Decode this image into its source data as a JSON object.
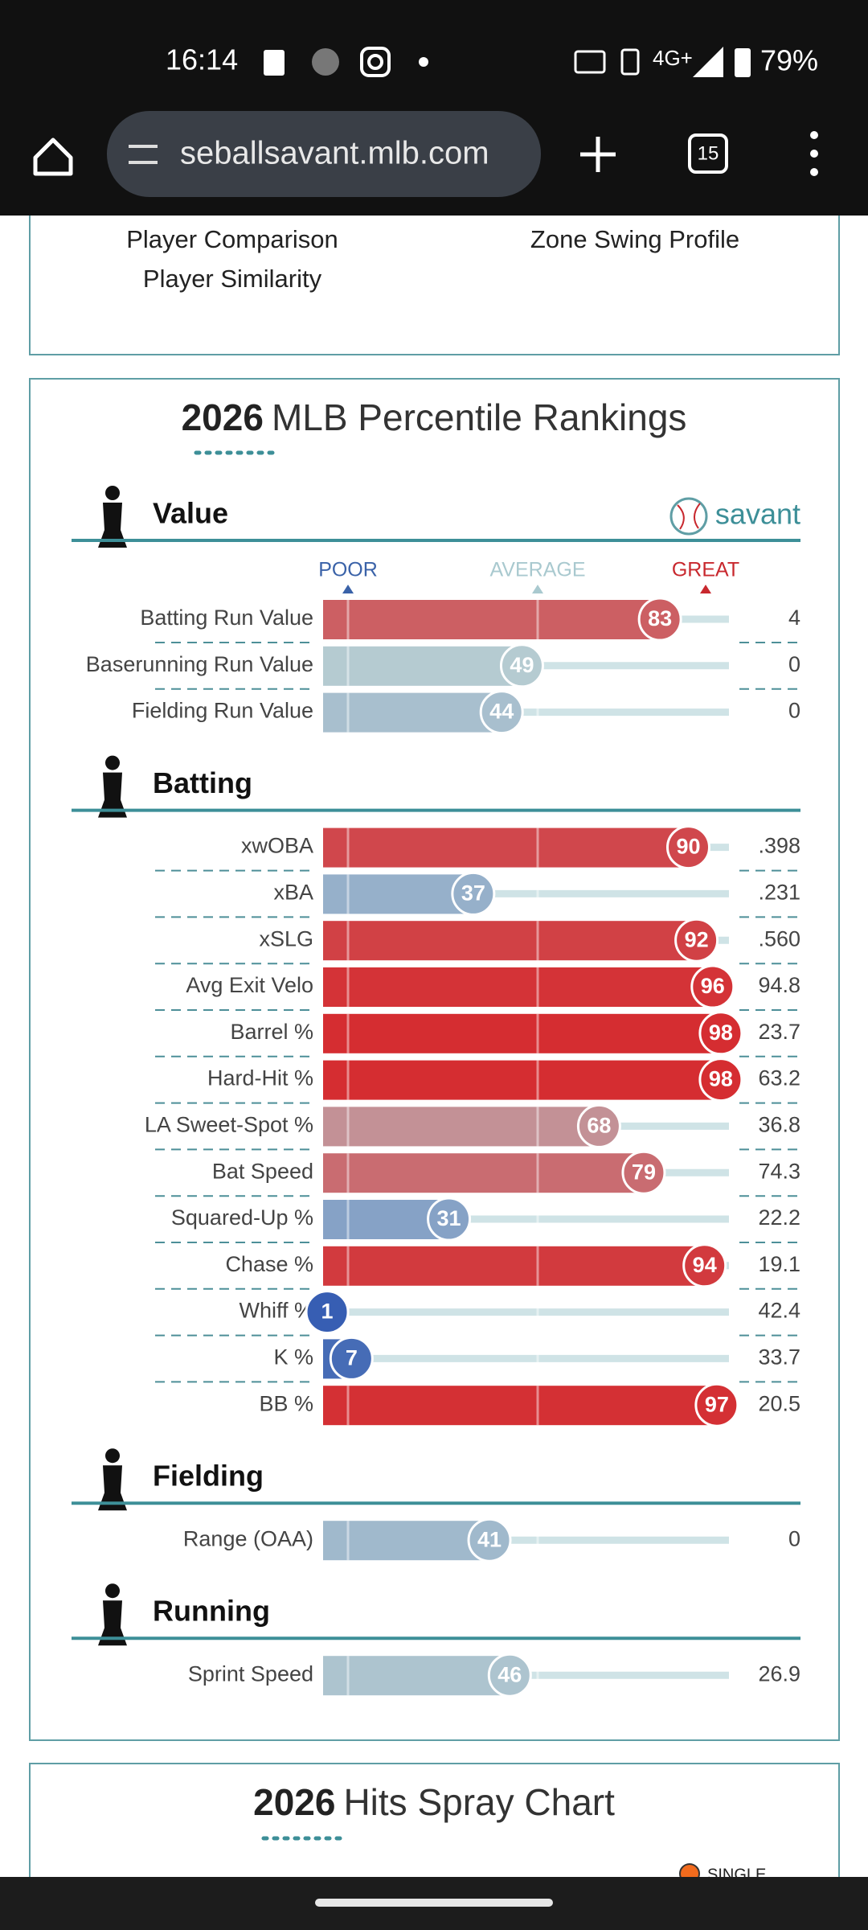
{
  "status_bar": {
    "time": "16:14",
    "network": "4G+",
    "battery": "79%"
  },
  "browser": {
    "url": "seballsavant.mlb.com",
    "tabs": 15
  },
  "top_card": {
    "links": [
      "Player Comparison",
      "Player Similarity",
      "Zone Swing Profile"
    ]
  },
  "rankings": {
    "year": "2026",
    "title": "MLB Percentile Rankings",
    "brand": "savant",
    "scale": [
      "POOR",
      "AVERAGE",
      "GREAT"
    ],
    "sections": [
      {
        "name": "Value",
        "rows": [
          {
            "label": "Batting Run Value",
            "percentile": 83,
            "value": "4"
          },
          {
            "label": "Baserunning Run Value",
            "percentile": 49,
            "value": "0"
          },
          {
            "label": "Fielding Run Value",
            "percentile": 44,
            "value": "0"
          }
        ]
      },
      {
        "name": "Batting",
        "rows": [
          {
            "label": "xwOBA",
            "percentile": 90,
            "value": ".398"
          },
          {
            "label": "xBA",
            "percentile": 37,
            "value": ".231"
          },
          {
            "label": "xSLG",
            "percentile": 92,
            "value": ".560"
          },
          {
            "label": "Avg Exit Velo",
            "percentile": 96,
            "value": "94.8"
          },
          {
            "label": "Barrel %",
            "percentile": 98,
            "value": "23.7"
          },
          {
            "label": "Hard-Hit %",
            "percentile": 98,
            "value": "63.2"
          },
          {
            "label": "LA Sweet-Spot %",
            "percentile": 68,
            "value": "36.8"
          },
          {
            "label": "Bat Speed",
            "percentile": 79,
            "value": "74.3"
          },
          {
            "label": "Squared-Up %",
            "percentile": 31,
            "value": "22.2"
          },
          {
            "label": "Chase %",
            "percentile": 94,
            "value": "19.1"
          },
          {
            "label": "Whiff %",
            "percentile": 1,
            "value": "42.4"
          },
          {
            "label": "K %",
            "percentile": 7,
            "value": "33.7"
          },
          {
            "label": "BB %",
            "percentile": 97,
            "value": "20.5"
          }
        ]
      },
      {
        "name": "Fielding",
        "rows": [
          {
            "label": "Range (OAA)",
            "percentile": 41,
            "value": "0"
          }
        ]
      },
      {
        "name": "Running",
        "rows": [
          {
            "label": "Sprint Speed",
            "percentile": 46,
            "value": "26.9"
          }
        ]
      }
    ]
  },
  "spray": {
    "year": "2026",
    "title": "Hits Spray Chart",
    "legend": [
      "SINGLE"
    ]
  }
}
